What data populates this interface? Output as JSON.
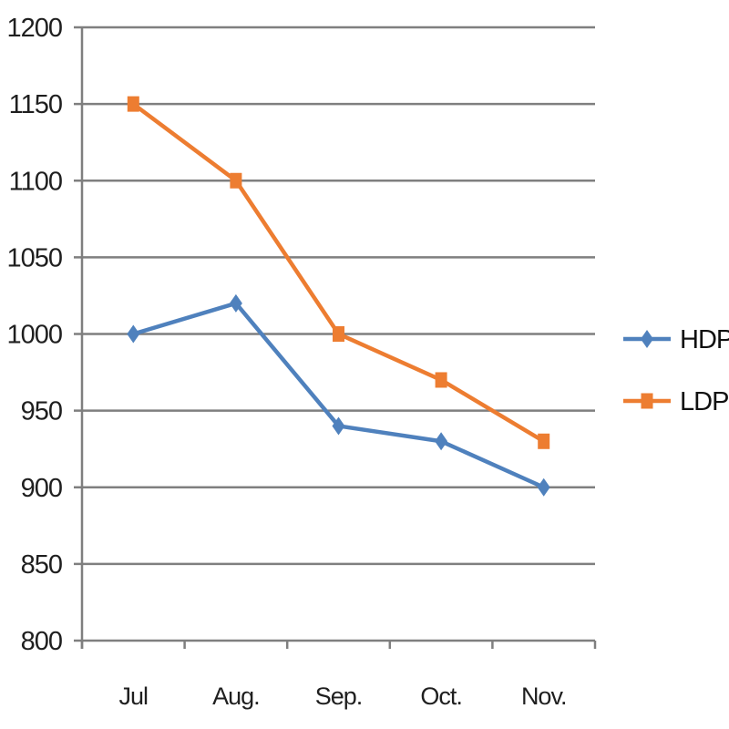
{
  "chart_data": {
    "type": "line",
    "title": "",
    "xlabel": "",
    "ylabel": "",
    "categories": [
      "Jul",
      "Aug.",
      "Sep.",
      "Oct.",
      "Nov."
    ],
    "series": [
      {
        "name": "HDPE",
        "color": "#4F81BD",
        "marker": "diamond",
        "values": [
          1000,
          1020,
          940,
          930,
          900
        ]
      },
      {
        "name": "LDPE",
        "color": "#ED7D31",
        "marker": "square",
        "values": [
          1150,
          1100,
          1000,
          970,
          930
        ]
      }
    ],
    "ylim": [
      800,
      1200
    ],
    "ytick_step": 50,
    "yticks": [
      1200,
      1150,
      1100,
      1050,
      1000,
      950,
      900,
      850,
      800
    ],
    "grid": true,
    "legend_position": "right"
  },
  "colors": {
    "background": "#ffffff",
    "gridline": "#7f7f7f",
    "axis": "#7f7f7f",
    "tick_text": "#1f1f1f",
    "legend_text": "#111111"
  }
}
